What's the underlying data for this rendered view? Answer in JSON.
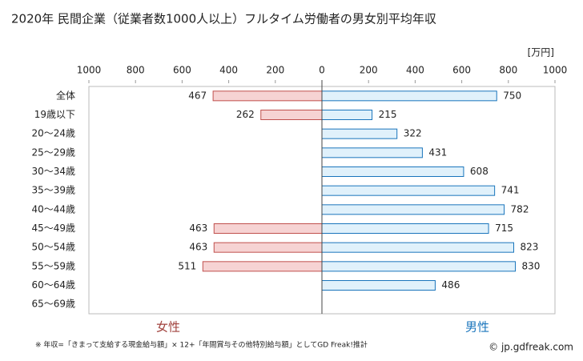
{
  "chart_data": {
    "type": "butterfly-bar",
    "title": "2020年 民間企業（従業者数1000人以上）フルタイム労働者の男女別平均年収",
    "unit": "[万円]",
    "categories": [
      "全体",
      "19歳以下",
      "20〜24歳",
      "25〜29歳",
      "30〜34歳",
      "35〜39歳",
      "40〜44歳",
      "45〜49歳",
      "50〜54歳",
      "55〜59歳",
      "60〜64歳",
      "65〜69歳"
    ],
    "series": [
      {
        "name": "女性",
        "side": "left",
        "color": "#f6d3d3",
        "edge": "#c0504d",
        "text_color": "#a0413c",
        "values": [
          467,
          262,
          null,
          null,
          null,
          null,
          null,
          463,
          463,
          511,
          null,
          null
        ]
      },
      {
        "name": "男性",
        "side": "right",
        "color": "#e0f1fb",
        "edge": "#1a75bc",
        "text_color": "#1a75bc",
        "values": [
          750,
          215,
          322,
          431,
          608,
          741,
          782,
          715,
          823,
          830,
          486,
          null
        ]
      }
    ],
    "xlim": [
      0,
      1000
    ],
    "xticks": [
      0,
      200,
      400,
      600,
      800,
      1000
    ],
    "note": "※ 年収=「きまって支給する現金給与額」× 12+「年間賞与その他特別給与額」としてGD Freak!推計",
    "source": "© jp.gdfreak.com"
  }
}
